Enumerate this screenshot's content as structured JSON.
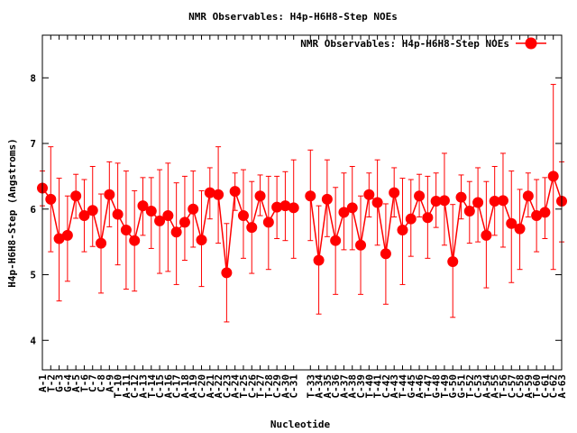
{
  "chart_data": {
    "type": "line",
    "title": "NMR Observables: H4p-H6H8-Step NOEs",
    "xlabel": "Nucleotide",
    "ylabel": "H4p-H6H8-Step (Angstroms)",
    "ylim": [
      3.55,
      8.65
    ],
    "yticks": [
      4,
      5,
      6,
      7,
      8
    ],
    "grid": false,
    "legend_position": "top-right",
    "series": [
      {
        "name": "NMR Observables: H4p-H6H8-Step NOEs",
        "color": "#ff0000",
        "points": [
          {
            "x": 1,
            "label": "A-1",
            "y": 6.32,
            "lo": 6.05,
            "hi": 6.58
          },
          {
            "x": 2,
            "label": "T-2",
            "y": 6.15,
            "lo": 5.35,
            "hi": 6.95
          },
          {
            "x": 3,
            "label": "G-3",
            "y": 5.55,
            "lo": 4.6,
            "hi": 6.47
          },
          {
            "x": 4,
            "label": "G-4",
            "y": 5.6,
            "lo": 4.9,
            "hi": 6.2
          },
          {
            "x": 5,
            "label": "A-5",
            "y": 6.2,
            "lo": 5.86,
            "hi": 6.53
          },
          {
            "x": 6,
            "label": "T-6",
            "y": 5.9,
            "lo": 5.35,
            "hi": 6.45
          },
          {
            "x": 7,
            "label": "C-7",
            "y": 5.98,
            "lo": 5.43,
            "hi": 6.65
          },
          {
            "x": 8,
            "label": "C-8",
            "y": 5.48,
            "lo": 4.72,
            "hi": 6.23
          },
          {
            "x": 9,
            "label": "A-9",
            "y": 6.22,
            "lo": 5.73,
            "hi": 6.72
          },
          {
            "x": 10,
            "label": "T-10",
            "y": 5.92,
            "lo": 5.15,
            "hi": 6.7
          },
          {
            "x": 11,
            "label": "A-11",
            "y": 5.68,
            "lo": 4.78,
            "hi": 6.58
          },
          {
            "x": 12,
            "label": "C-12",
            "y": 5.52,
            "lo": 4.75,
            "hi": 6.28
          },
          {
            "x": 13,
            "label": "A-13",
            "y": 6.05,
            "lo": 5.6,
            "hi": 6.48
          },
          {
            "x": 14,
            "label": "T-14",
            "y": 5.97,
            "lo": 5.4,
            "hi": 6.48
          },
          {
            "x": 15,
            "label": "C-15",
            "y": 5.82,
            "lo": 5.02,
            "hi": 6.6
          },
          {
            "x": 16,
            "label": "A-16",
            "y": 5.9,
            "lo": 5.05,
            "hi": 6.7
          },
          {
            "x": 17,
            "label": "C-17",
            "y": 5.65,
            "lo": 4.85,
            "hi": 6.4
          },
          {
            "x": 18,
            "label": "A-18",
            "y": 5.8,
            "lo": 5.22,
            "hi": 6.5
          },
          {
            "x": 19,
            "label": "A-19",
            "y": 6.0,
            "lo": 5.42,
            "hi": 6.58
          },
          {
            "x": 20,
            "label": "C-20",
            "y": 5.53,
            "lo": 4.82,
            "hi": 6.28
          },
          {
            "x": 21,
            "label": "A-21",
            "y": 6.25,
            "lo": 5.85,
            "hi": 6.63
          },
          {
            "x": 22,
            "label": "A-22",
            "y": 6.22,
            "lo": 5.48,
            "hi": 6.95
          },
          {
            "x": 23,
            "label": "C-23",
            "y": 5.03,
            "lo": 4.28,
            "hi": 5.78
          },
          {
            "x": 24,
            "label": "A-24",
            "y": 6.27,
            "lo": 5.98,
            "hi": 6.55
          },
          {
            "x": 25,
            "label": "T-25",
            "y": 5.9,
            "lo": 5.25,
            "hi": 6.6
          },
          {
            "x": 26,
            "label": "C-26",
            "y": 5.72,
            "lo": 5.02,
            "hi": 6.42
          },
          {
            "x": 27,
            "label": "T-27",
            "y": 6.2,
            "lo": 5.9,
            "hi": 6.52
          },
          {
            "x": 28,
            "label": "T-28",
            "y": 5.8,
            "lo": 5.08,
            "hi": 6.5
          },
          {
            "x": 29,
            "label": "C-29",
            "y": 6.03,
            "lo": 5.55,
            "hi": 6.5
          },
          {
            "x": 30,
            "label": "A-30",
            "y": 6.05,
            "lo": 5.52,
            "hi": 6.57
          },
          {
            "x": 31,
            "label": "C-31",
            "y": 6.02,
            "lo": 5.25,
            "hi": 6.75
          },
          {
            "x": 33,
            "label": "T-33",
            "y": 6.2,
            "lo": 5.52,
            "hi": 6.9
          },
          {
            "x": 34,
            "label": "A-34",
            "y": 5.22,
            "lo": 4.4,
            "hi": 6.05
          },
          {
            "x": 35,
            "label": "A-35",
            "y": 6.15,
            "lo": 5.58,
            "hi": 6.75
          },
          {
            "x": 36,
            "label": "C-36",
            "y": 5.52,
            "lo": 4.7,
            "hi": 6.33
          },
          {
            "x": 37,
            "label": "A-37",
            "y": 5.95,
            "lo": 5.38,
            "hi": 6.55
          },
          {
            "x": 38,
            "label": "A-38",
            "y": 6.02,
            "lo": 5.38,
            "hi": 6.65
          },
          {
            "x": 39,
            "label": "C-39",
            "y": 5.45,
            "lo": 4.7,
            "hi": 6.2
          },
          {
            "x": 40,
            "label": "T-40",
            "y": 6.22,
            "lo": 5.88,
            "hi": 6.55
          },
          {
            "x": 41,
            "label": "T-41",
            "y": 6.1,
            "lo": 5.45,
            "hi": 6.75
          },
          {
            "x": 42,
            "label": "C-42",
            "y": 5.32,
            "lo": 4.55,
            "hi": 6.08
          },
          {
            "x": 43,
            "label": "A-43",
            "y": 6.25,
            "lo": 5.88,
            "hi": 6.63
          },
          {
            "x": 44,
            "label": "T-44",
            "y": 5.68,
            "lo": 4.85,
            "hi": 6.47
          },
          {
            "x": 45,
            "label": "G-45",
            "y": 5.85,
            "lo": 5.28,
            "hi": 6.45
          },
          {
            "x": 46,
            "label": "A-46",
            "y": 6.2,
            "lo": 5.88,
            "hi": 6.53
          },
          {
            "x": 47,
            "label": "T-47",
            "y": 5.87,
            "lo": 5.25,
            "hi": 6.5
          },
          {
            "x": 48,
            "label": "G-48",
            "y": 6.12,
            "lo": 5.72,
            "hi": 6.55
          },
          {
            "x": 49,
            "label": "T-49",
            "y": 6.13,
            "lo": 5.45,
            "hi": 6.85
          },
          {
            "x": 50,
            "label": "G-50",
            "y": 5.2,
            "lo": 4.35,
            "hi": 6.07
          },
          {
            "x": 51,
            "label": "G-51",
            "y": 6.18,
            "lo": 5.85,
            "hi": 6.52
          },
          {
            "x": 52,
            "label": "T-52",
            "y": 5.97,
            "lo": 5.48,
            "hi": 6.42
          },
          {
            "x": 53,
            "label": "C-53",
            "y": 6.1,
            "lo": 5.5,
            "hi": 6.63
          },
          {
            "x": 54,
            "label": "A-54",
            "y": 5.6,
            "lo": 4.8,
            "hi": 6.42
          },
          {
            "x": 55,
            "label": "A-55",
            "y": 6.12,
            "lo": 5.6,
            "hi": 6.65
          },
          {
            "x": 56,
            "label": "T-56",
            "y": 6.13,
            "lo": 5.42,
            "hi": 6.85
          },
          {
            "x": 57,
            "label": "C-57",
            "y": 5.78,
            "lo": 4.88,
            "hi": 6.58
          },
          {
            "x": 58,
            "label": "C-58",
            "y": 5.7,
            "lo": 5.08,
            "hi": 6.3
          },
          {
            "x": 59,
            "label": "A-59",
            "y": 6.2,
            "lo": 5.88,
            "hi": 6.55
          },
          {
            "x": 60,
            "label": "T-60",
            "y": 5.9,
            "lo": 5.35,
            "hi": 6.45
          },
          {
            "x": 61,
            "label": "C-61",
            "y": 5.95,
            "lo": 5.55,
            "hi": 6.48
          },
          {
            "x": 62,
            "label": "C-62",
            "y": 6.5,
            "lo": 5.08,
            "hi": 7.9
          },
          {
            "x": 63,
            "label": "A-63",
            "y": 6.12,
            "lo": 5.5,
            "hi": 6.72
          }
        ]
      }
    ]
  }
}
